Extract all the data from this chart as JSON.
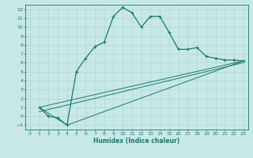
{
  "xlabel": "Humidex (Indice chaleur)",
  "bg_color": "#c8e8e8",
  "grid_color": "#afd4d4",
  "line_color": "#1a7a6a",
  "xlim": [
    -0.5,
    23.5
  ],
  "ylim": [
    -1.5,
    12.5
  ],
  "xticks": [
    0,
    1,
    2,
    3,
    4,
    5,
    6,
    7,
    8,
    9,
    10,
    11,
    12,
    13,
    14,
    15,
    16,
    17,
    18,
    19,
    20,
    21,
    22,
    23
  ],
  "yticks": [
    -1,
    0,
    1,
    2,
    3,
    4,
    5,
    6,
    7,
    8,
    9,
    10,
    11,
    12
  ],
  "series1_x": [
    1,
    2,
    3,
    4,
    5,
    6,
    7,
    8,
    9,
    10,
    11,
    12,
    13,
    14,
    15,
    16,
    17,
    18,
    19,
    20,
    21,
    22,
    23
  ],
  "series1_y": [
    1,
    0,
    -0.2,
    -1,
    5.0,
    6.5,
    7.8,
    8.3,
    11.2,
    12.2,
    11.6,
    10.0,
    11.2,
    11.2,
    9.4,
    7.5,
    7.5,
    7.7,
    6.7,
    6.5,
    6.3,
    6.3,
    6.2
  ],
  "line2_x": [
    1,
    23
  ],
  "line2_y": [
    1,
    6.2
  ],
  "line3_x": [
    1,
    4,
    23
  ],
  "line3_y": [
    1,
    -1,
    6.2
  ],
  "line4_x": [
    1,
    23
  ],
  "line4_y": [
    0.5,
    6.0
  ]
}
